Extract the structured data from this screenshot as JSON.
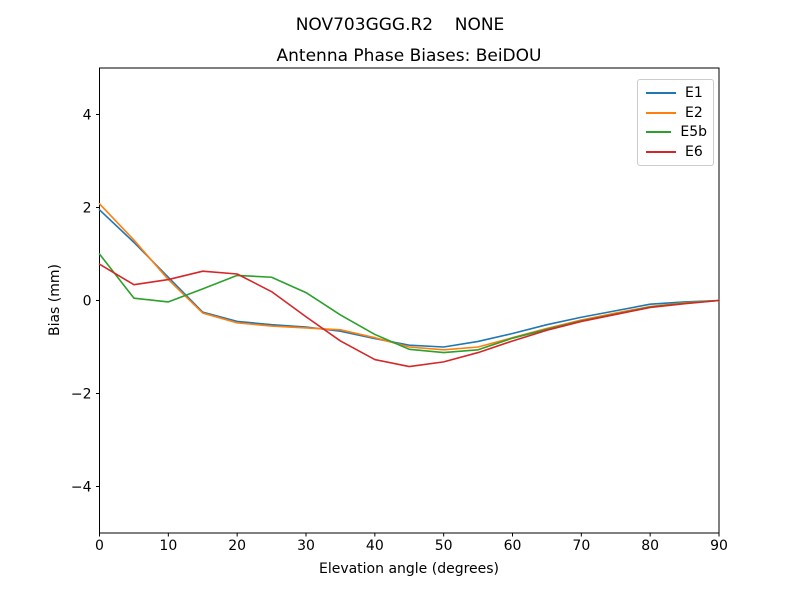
{
  "figure": {
    "suptitle": "NOV703GGG.R2    NONE"
  },
  "chart_data": {
    "type": "line",
    "suptitle": "NOV703GGG.R2    NONE",
    "title": "Antenna Phase Biases: BeiDOU",
    "xlabel": "Elevation angle (degrees)",
    "ylabel": "Bias (mm)",
    "xlim": [
      0,
      90
    ],
    "ylim": [
      -5,
      5
    ],
    "x_ticks": [
      0,
      10,
      20,
      30,
      40,
      50,
      60,
      70,
      80,
      90
    ],
    "y_ticks": [
      -4,
      -2,
      0,
      2,
      4
    ],
    "grid": false,
    "legend_position": "upper right",
    "x": [
      0,
      5,
      10,
      15,
      20,
      25,
      30,
      35,
      40,
      45,
      50,
      55,
      60,
      65,
      70,
      75,
      80,
      85,
      90
    ],
    "series": [
      {
        "name": "E1",
        "color": "#1f77b4",
        "values": [
          1.95,
          1.25,
          0.5,
          -0.25,
          -0.45,
          -0.52,
          -0.57,
          -0.66,
          -0.82,
          -0.96,
          -1.0,
          -0.88,
          -0.71,
          -0.52,
          -0.36,
          -0.22,
          -0.08,
          -0.03,
          0.0
        ]
      },
      {
        "name": "E2",
        "color": "#ff7f0e",
        "values": [
          2.08,
          1.3,
          0.45,
          -0.27,
          -0.48,
          -0.55,
          -0.59,
          -0.63,
          -0.8,
          -1.0,
          -1.06,
          -1.0,
          -0.8,
          -0.6,
          -0.42,
          -0.27,
          -0.13,
          -0.05,
          0.0
        ]
      },
      {
        "name": "E5b",
        "color": "#2ca02c",
        "values": [
          1.0,
          0.05,
          -0.03,
          0.25,
          0.54,
          0.5,
          0.17,
          -0.31,
          -0.73,
          -1.05,
          -1.12,
          -1.06,
          -0.81,
          -0.62,
          -0.44,
          -0.29,
          -0.14,
          -0.06,
          0.0
        ]
      },
      {
        "name": "E6",
        "color": "#d62728",
        "values": [
          0.78,
          0.34,
          0.45,
          0.63,
          0.57,
          0.19,
          -0.35,
          -0.87,
          -1.27,
          -1.42,
          -1.32,
          -1.12,
          -0.87,
          -0.64,
          -0.45,
          -0.3,
          -0.15,
          -0.07,
          0.0
        ]
      }
    ]
  }
}
